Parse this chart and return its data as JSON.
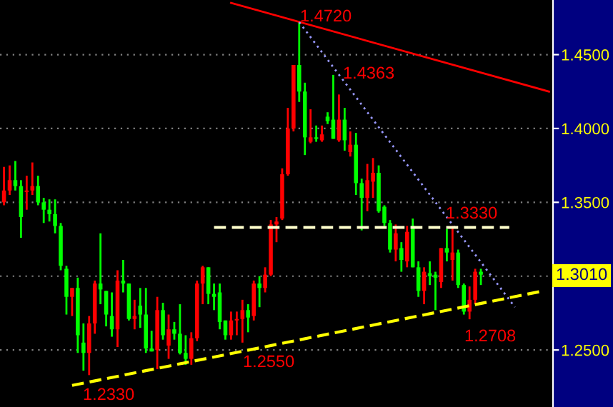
{
  "chart_data": {
    "type": "candlestick",
    "categories": [
      null,
      null,
      null,
      null,
      null,
      null,
      null,
      null,
      null,
      null,
      null,
      null,
      null,
      null,
      null,
      null,
      null,
      null,
      null,
      null,
      null,
      null,
      null,
      null,
      null,
      null,
      null,
      null,
      null,
      null,
      null,
      null,
      null,
      null,
      null,
      null,
      null,
      null,
      null,
      null,
      null,
      null,
      null,
      null,
      null,
      null,
      null,
      null,
      null,
      null,
      null,
      null,
      null,
      null,
      null,
      null,
      null,
      null,
      null,
      null,
      null,
      null,
      null,
      null,
      null,
      null,
      null,
      null,
      null,
      null,
      null,
      null,
      null,
      null,
      null,
      null,
      null,
      null,
      null,
      null,
      null,
      null,
      null,
      null,
      null,
      null,
      null,
      null,
      null,
      null,
      null,
      null,
      null,
      null,
      null,
      null,
      null
    ],
    "ohlc": [
      [
        1.35,
        1.374,
        1.348,
        1.358
      ],
      [
        1.358,
        1.375,
        1.355,
        1.365
      ],
      [
        1.365,
        1.378,
        1.358,
        1.361
      ],
      [
        1.361,
        1.365,
        1.326,
        1.34
      ],
      [
        1.357,
        1.368,
        1.345,
        1.358
      ],
      [
        1.358,
        1.377,
        1.355,
        1.361
      ],
      [
        1.361,
        1.368,
        1.348,
        1.35
      ],
      [
        1.35,
        1.353,
        1.336,
        1.345
      ],
      [
        1.345,
        1.352,
        1.337,
        1.342
      ],
      [
        1.342,
        1.352,
        1.329,
        1.334
      ],
      [
        1.334,
        1.336,
        1.304,
        1.307
      ],
      [
        1.305,
        1.307,
        1.274,
        1.286
      ],
      [
        1.286,
        1.292,
        1.273,
        1.292
      ],
      [
        1.292,
        1.299,
        1.248,
        1.26
      ],
      [
        1.255,
        1.268,
        1.236,
        1.248
      ],
      [
        1.248,
        1.273,
        1.233,
        1.268
      ],
      [
        1.268,
        1.297,
        1.261,
        1.295
      ],
      [
        1.295,
        1.329,
        1.281,
        1.291
      ],
      [
        1.29,
        1.29,
        1.266,
        1.274
      ],
      [
        1.273,
        1.289,
        1.259,
        1.264
      ],
      [
        1.264,
        1.304,
        1.252,
        1.297
      ],
      [
        1.297,
        1.311,
        1.289,
        1.295
      ],
      [
        1.295,
        1.295,
        1.27,
        1.271
      ],
      [
        1.271,
        1.284,
        1.264,
        1.273
      ],
      [
        1.28,
        1.292,
        1.265,
        1.274
      ],
      [
        1.274,
        1.292,
        1.248,
        1.251
      ],
      [
        1.251,
        1.263,
        1.249,
        1.249
      ],
      [
        1.25,
        1.286,
        1.237,
        1.277
      ],
      [
        1.277,
        1.282,
        1.257,
        1.26
      ],
      [
        1.253,
        1.274,
        1.244,
        1.264
      ],
      [
        1.264,
        1.269,
        1.257,
        1.261
      ],
      [
        1.261,
        1.281,
        1.247,
        1.248
      ],
      [
        1.248,
        1.26,
        1.24,
        1.244
      ],
      [
        1.244,
        1.262,
        1.24,
        1.258
      ],
      [
        1.258,
        1.297,
        1.256,
        1.295
      ],
      [
        1.295,
        1.307,
        1.281,
        1.306
      ],
      [
        1.306,
        1.306,
        1.281,
        1.288
      ],
      [
        1.288,
        1.295,
        1.277,
        1.286
      ],
      [
        1.289,
        1.295,
        1.264,
        1.269
      ],
      [
        1.27,
        1.27,
        1.257,
        1.26
      ],
      [
        1.26,
        1.276,
        1.257,
        1.27
      ],
      [
        1.27,
        1.276,
        1.26,
        1.271
      ],
      [
        1.271,
        1.284,
        1.255,
        1.277
      ],
      [
        1.277,
        1.281,
        1.262,
        1.272
      ],
      [
        1.273,
        1.297,
        1.27,
        1.295
      ],
      [
        1.295,
        1.3,
        1.279,
        1.292
      ],
      [
        1.292,
        1.306,
        1.289,
        1.301
      ],
      [
        1.301,
        1.338,
        1.3,
        1.335
      ],
      [
        1.335,
        1.34,
        1.323,
        1.337
      ],
      [
        1.339,
        1.373,
        1.338,
        1.369
      ],
      [
        1.369,
        1.414,
        1.368,
        1.4
      ],
      [
        1.4,
        1.443,
        1.398,
        1.443
      ],
      [
        1.443,
        1.472,
        1.418,
        1.425
      ],
      [
        1.425,
        1.431,
        1.382,
        1.394
      ],
      [
        1.391,
        1.413,
        1.39,
        1.394
      ],
      [
        1.394,
        1.402,
        1.391,
        1.393
      ],
      [
        1.392,
        1.402,
        1.391,
        1.396
      ],
      [
        1.408,
        1.411,
        1.403,
        1.405
      ],
      [
        1.406,
        1.4363,
        1.393,
        1.393
      ],
      [
        1.392,
        1.423,
        1.391,
        1.406
      ],
      [
        1.406,
        1.414,
        1.385,
        1.392
      ],
      [
        1.384,
        1.398,
        1.381,
        1.389
      ],
      [
        1.389,
        1.397,
        1.355,
        1.363
      ],
      [
        1.363,
        1.366,
        1.331,
        1.353
      ],
      [
        1.353,
        1.376,
        1.344,
        1.365
      ],
      [
        1.364,
        1.38,
        1.353,
        1.37
      ],
      [
        1.37,
        1.375,
        1.343,
        1.344
      ],
      [
        1.347,
        1.348,
        1.334,
        1.336
      ],
      [
        1.336,
        1.338,
        1.316,
        1.318
      ],
      [
        1.318,
        1.335,
        1.31,
        1.329
      ],
      [
        1.319,
        1.323,
        1.303,
        1.311
      ],
      [
        1.31,
        1.334,
        1.306,
        1.33
      ],
      [
        1.334,
        1.339,
        1.306,
        1.306
      ],
      [
        1.306,
        1.31,
        1.286,
        1.29
      ],
      [
        1.29,
        1.306,
        1.281,
        1.303
      ],
      [
        1.302,
        1.31,
        1.294,
        1.3
      ],
      [
        1.301,
        1.303,
        1.277,
        1.299
      ],
      [
        1.296,
        1.319,
        1.292,
        1.319
      ],
      [
        1.319,
        1.332,
        1.31,
        1.316
      ],
      [
        1.311,
        1.334,
        1.297,
        1.316
      ],
      [
        1.316,
        1.318,
        1.292,
        1.294
      ],
      [
        1.294,
        1.295,
        1.274,
        1.276
      ],
      [
        1.276,
        1.293,
        1.2708,
        1.284
      ],
      [
        1.284,
        1.305,
        1.281,
        1.303
      ],
      [
        1.303,
        1.305,
        1.294,
        1.301
      ],
      null,
      null,
      null,
      null,
      null,
      null,
      null,
      null,
      null,
      null,
      null,
      null
    ],
    "colors": [
      "#ff0000",
      "#ff0000",
      "#00ff00",
      "#00ff00",
      "#ff0000",
      "#ff0000",
      "#00ff00",
      "#00ff00",
      "#00ff00",
      "#00ff00",
      "#00ff00",
      "#00ff00",
      "#ff0000",
      "#00ff00",
      "#00ff00",
      "#ff0000",
      "#ff0000",
      "#00ff00",
      "#00ff00",
      "#00ff00",
      "#ff0000",
      "#00ff00",
      "#00ff00",
      "#ff0000",
      "#00ff00",
      "#00ff00",
      "#00ff00",
      "#ff0000",
      "#00ff00",
      "#ff0000",
      "#00ff00",
      "#00ff00",
      "#00ff00",
      "#ff0000",
      "#ff0000",
      "#ff0000",
      "#00ff00",
      "#00ff00",
      "#00ff00",
      "#00ff00",
      "#ff0000",
      "#ff0000",
      "#ff0000",
      "#00ff00",
      "#ff0000",
      "#00ff00",
      "#ff0000",
      "#ff0000",
      "#ff0000",
      "#ff0000",
      "#ff0000",
      "#ff0000",
      "#00ff00",
      "#00ff00",
      "#ff0000",
      "#00ff00",
      "#ff0000",
      "#00ff00",
      "#00ff00",
      "#ff0000",
      "#00ff00",
      "#ff0000",
      "#00ff00",
      "#00ff00",
      "#ff0000",
      "#ff0000",
      "#00ff00",
      "#00ff00",
      "#00ff00",
      "#ff0000",
      "#00ff00",
      "#ff0000",
      "#00ff00",
      "#00ff00",
      "#ff0000",
      "#00ff00",
      "#00ff00",
      "#ff0000",
      "#00ff00",
      "#ff0000",
      "#00ff00",
      "#00ff00",
      "#ff0000",
      "#ff0000",
      "#00ff00",
      null,
      null,
      null,
      null,
      null,
      null,
      null,
      null,
      null,
      null,
      null,
      null
    ],
    "series": [
      {
        "type": "line",
        "color": "#ff0000",
        "line_style": "solid",
        "values": [
          null,
          null,
          null,
          null,
          null,
          null,
          null,
          null,
          null,
          null,
          null,
          null,
          null,
          null,
          null,
          null,
          null,
          null,
          null,
          null,
          null,
          null,
          null,
          null,
          null,
          null,
          null,
          null,
          null,
          null,
          null,
          null,
          null,
          null,
          null,
          null,
          null,
          null,
          null,
          null,
          1.485,
          null,
          null,
          null,
          null,
          null,
          null,
          null,
          null,
          null,
          null,
          null,
          null,
          null,
          null,
          null,
          null,
          null,
          null,
          null,
          null,
          null,
          null,
          null,
          null,
          null,
          null,
          null,
          null,
          null,
          null,
          null,
          null,
          null,
          null,
          null,
          null,
          null,
          null,
          null,
          null,
          null,
          null,
          null,
          null,
          null,
          null,
          null,
          null,
          null,
          null,
          null,
          null,
          null,
          null,
          null,
          1.425
        ]
      },
      {
        "type": "line",
        "color": "#9999ff",
        "line_style": "dotted",
        "values": [
          null,
          null,
          null,
          null,
          null,
          null,
          null,
          null,
          null,
          null,
          null,
          null,
          null,
          null,
          null,
          null,
          null,
          null,
          null,
          null,
          null,
          null,
          null,
          null,
          null,
          null,
          null,
          null,
          null,
          null,
          null,
          null,
          null,
          null,
          null,
          null,
          null,
          null,
          null,
          null,
          null,
          null,
          null,
          null,
          null,
          null,
          null,
          null,
          null,
          null,
          null,
          null,
          1.472,
          null,
          null,
          null,
          null,
          null,
          null,
          null,
          null,
          null,
          null,
          null,
          null,
          null,
          null,
          null,
          null,
          null,
          null,
          null,
          null,
          null,
          null,
          null,
          null,
          null,
          null,
          null,
          null,
          null,
          null,
          null,
          null,
          null,
          null,
          null,
          null,
          null,
          1.279,
          null,
          null,
          null,
          null,
          null,
          null
        ]
      },
      {
        "type": "line",
        "color": "#ffff00",
        "line_style": "dashed",
        "values": [
          null,
          null,
          null,
          null,
          null,
          null,
          null,
          null,
          null,
          null,
          null,
          null,
          1.226,
          null,
          null,
          null,
          null,
          null,
          null,
          null,
          null,
          null,
          null,
          null,
          null,
          null,
          null,
          null,
          null,
          null,
          null,
          null,
          null,
          null,
          null,
          null,
          null,
          null,
          null,
          null,
          null,
          null,
          null,
          null,
          null,
          null,
          null,
          null,
          null,
          null,
          null,
          null,
          null,
          null,
          null,
          null,
          null,
          null,
          null,
          null,
          null,
          null,
          null,
          null,
          null,
          null,
          null,
          null,
          null,
          null,
          null,
          null,
          null,
          null,
          null,
          null,
          null,
          null,
          null,
          null,
          null,
          null,
          null,
          null,
          null,
          null,
          null,
          null,
          null,
          null,
          null,
          null,
          null,
          null,
          null,
          1.29,
          null
        ]
      },
      {
        "type": "line",
        "color": "#ffffcc",
        "line_style": "dashed",
        "values": [
          null,
          null,
          null,
          null,
          null,
          null,
          null,
          null,
          null,
          null,
          null,
          null,
          null,
          null,
          null,
          null,
          null,
          null,
          null,
          null,
          null,
          null,
          null,
          null,
          null,
          null,
          null,
          null,
          null,
          null,
          null,
          null,
          null,
          null,
          null,
          null,
          null,
          1.333,
          null,
          null,
          null,
          null,
          null,
          null,
          null,
          null,
          null,
          null,
          null,
          null,
          null,
          null,
          null,
          null,
          null,
          null,
          null,
          null,
          null,
          null,
          null,
          null,
          null,
          null,
          null,
          null,
          null,
          null,
          null,
          null,
          null,
          null,
          null,
          null,
          null,
          null,
          null,
          null,
          null,
          null,
          null,
          null,
          null,
          null,
          null,
          null,
          null,
          null,
          null,
          1.333,
          null,
          null,
          null,
          null,
          null,
          null,
          null
        ]
      }
    ],
    "ylim": [
      1.2114,
      1.487
    ],
    "yticks": [
      {
        "value": 1.25,
        "label": "1.2500"
      },
      {
        "value": 1.3,
        "label": null
      },
      {
        "value": 1.35,
        "label": "1.3500"
      },
      {
        "value": 1.4,
        "label": "1.4000"
      },
      {
        "value": 1.45,
        "label": "1.4500"
      }
    ],
    "tick_labels": "y",
    "grid": "y",
    "annotations": [
      "1.4720",
      "1.4363",
      "1.3330",
      "1.2330",
      "1.2550",
      "1.2708",
      "1.3010"
    ]
  }
}
